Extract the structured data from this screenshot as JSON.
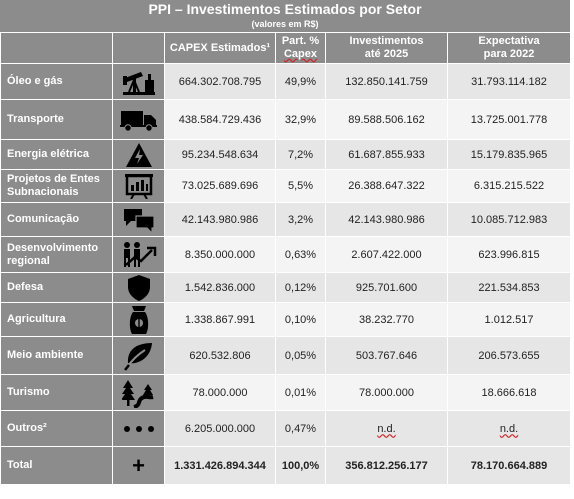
{
  "title": "PPI – Investimentos Estimados por Setor",
  "subtitle": "(valores em R$)",
  "headers": {
    "capex": "CAPEX Estimados¹",
    "part_line1": "Part. %",
    "part_line2": "Capex",
    "inv_line1": "Investimentos",
    "inv_line2": "até 2025",
    "exp_line1": "Expectativa",
    "exp_line2": "para 2022"
  },
  "rows": [
    {
      "sector": "Óleo e gás",
      "icon": "oil-pump-icon",
      "capex": "664.302.708.795",
      "part": "49,9%",
      "inv": "132.850.141.759",
      "exp": "31.793.114.182"
    },
    {
      "sector": "Transporte",
      "icon": "truck-icon",
      "capex": "438.584.729.436",
      "part": "32,9%",
      "inv": "89.588.506.162",
      "exp": "13.725.001.778"
    },
    {
      "sector": "Energia elétrica",
      "icon": "high-voltage-icon",
      "capex": "95.234.548.634",
      "part": "7,2%",
      "inv": "61.687.855.933",
      "exp": "15.179.835.965"
    },
    {
      "sector": "Projetos de Entes Subnacionais",
      "icon": "presentation-board-icon",
      "capex": "73.025.689.696",
      "part": "5,5%",
      "inv": "26.388.647.322",
      "exp": "6.315.215.522"
    },
    {
      "sector": "Comunicação",
      "icon": "chat-bubbles-icon",
      "capex": "42.143.980.986",
      "part": "3,2%",
      "inv": "42.143.980.986",
      "exp": "10.085.712.983"
    },
    {
      "sector": "Desenvolvimento regional",
      "icon": "people-growth-icon",
      "capex": "8.350.000.000",
      "part": "0,63%",
      "inv": "2.607.422.000",
      "exp": "623.996.815"
    },
    {
      "sector": "Defesa",
      "icon": "shield-icon",
      "capex": "1.542.836.000",
      "part": "0,12%",
      "inv": "925.701.600",
      "exp": "221.534.853"
    },
    {
      "sector": "Agricultura",
      "icon": "seed-bag-icon",
      "capex": "1.338.867.991",
      "part": "0,10%",
      "inv": "38.232.770",
      "exp": "1.012.517"
    },
    {
      "sector": "Meio ambiente",
      "icon": "leaf-icon",
      "capex": "620.532.806",
      "part": "0,05%",
      "inv": "503.767.646",
      "exp": "206.573.655"
    },
    {
      "sector": "Turismo",
      "icon": "trees-road-icon",
      "capex": "78.000.000",
      "part": "0,01%",
      "inv": "78.000.000",
      "exp": "18.666.618"
    },
    {
      "sector": "Outros²",
      "icon": "dots-icon",
      "capex": "6.205.000.000",
      "part": "0,47%",
      "inv": "n.d.",
      "exp": "n.d."
    }
  ],
  "total": {
    "sector": "Total",
    "icon": "plus-icon",
    "capex": "1.331.426.894.344",
    "part": "100,0%",
    "inv": "356.812.256.177",
    "exp": "78.170.664.889"
  }
}
